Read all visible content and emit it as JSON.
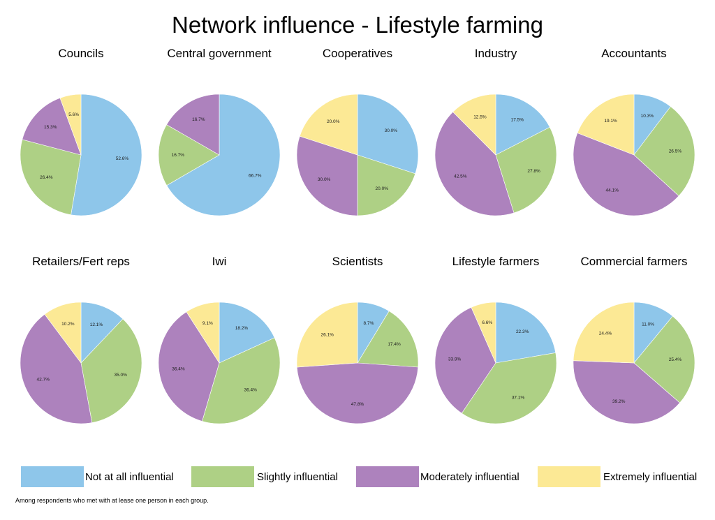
{
  "chart_data": {
    "type": "pie",
    "title": "Network influence - Lifestyle farming",
    "legend_position": "bottom",
    "categories": [
      "Not at all influential",
      "Slightly influential",
      "Moderately influential",
      "Extremely influential"
    ],
    "colors": [
      "#8ec6ea",
      "#aed085",
      "#ad82bd",
      "#fce995"
    ],
    "pies": [
      {
        "name": "Councils",
        "values": [
          52.6,
          26.4,
          15.3,
          5.6
        ],
        "labels": [
          "52.6%",
          "26.4%",
          "15.3%",
          "5.6%"
        ]
      },
      {
        "name": "Central government",
        "values": [
          66.7,
          16.7,
          16.7,
          0
        ],
        "labels": [
          "66.7%",
          "16.7%",
          "16.7%",
          ""
        ]
      },
      {
        "name": "Cooperatives",
        "values": [
          30.0,
          20.0,
          30.0,
          20.0
        ],
        "labels": [
          "30.0%",
          "20.0%",
          "30.0%",
          "20.0%"
        ]
      },
      {
        "name": "Industry",
        "values": [
          17.5,
          27.8,
          42.5,
          12.5
        ],
        "labels": [
          "17.5%",
          "27.8%",
          "42.5%",
          "12.5%"
        ]
      },
      {
        "name": "Accountants",
        "values": [
          10.3,
          26.5,
          44.1,
          19.1
        ],
        "labels": [
          "10.3%",
          "26.5%",
          "44.1%",
          "19.1%"
        ]
      },
      {
        "name": "Retailers/Fert reps",
        "values": [
          12.1,
          35.0,
          42.7,
          10.2
        ],
        "labels": [
          "12.1%",
          "35.0%",
          "42.7%",
          "10.2%"
        ]
      },
      {
        "name": "Iwi",
        "values": [
          18.2,
          36.4,
          36.4,
          9.1
        ],
        "labels": [
          "18.2%",
          "36.4%",
          "36.4%",
          "9.1%"
        ]
      },
      {
        "name": "Scientists",
        "values": [
          8.7,
          17.4,
          47.8,
          26.1
        ],
        "labels": [
          "8.7%",
          "17.4%",
          "47.8%",
          "26.1%"
        ]
      },
      {
        "name": "Lifestyle farmers",
        "values": [
          22.3,
          37.1,
          33.9,
          6.6
        ],
        "labels": [
          "22.3%",
          "37.1%",
          "33.9%",
          "6.6%"
        ]
      },
      {
        "name": "Commercial farmers",
        "values": [
          11.0,
          25.4,
          39.2,
          24.4
        ],
        "labels": [
          "11.0%",
          "25.4%",
          "39.2%",
          "24.4%"
        ]
      }
    ]
  },
  "footnote": "Among respondents who met with at lease one person in each group."
}
